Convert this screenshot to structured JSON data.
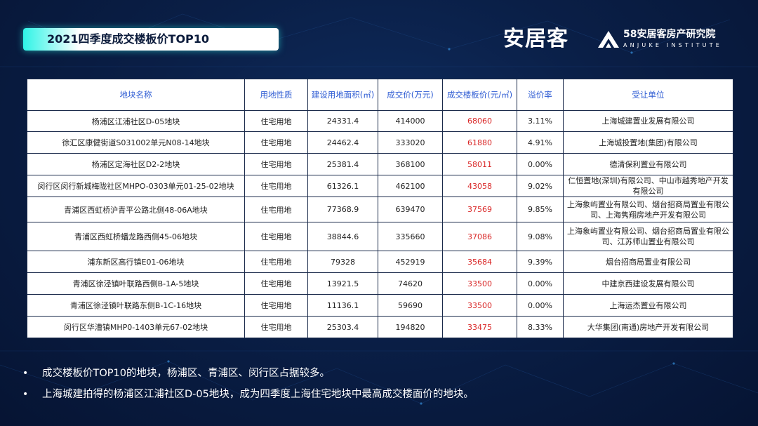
{
  "header": {
    "title": "2021四季度成交楼板价TOP10",
    "logo_anjuke": "安居客",
    "logo_institute_cn": "58安居客房产研究院",
    "logo_institute_en": "ANJUKE INSTITUTE"
  },
  "table": {
    "headers": [
      "地块名称",
      "用地性质",
      "建设用地面积(㎡)",
      "成交价(万元)",
      "成交楼板价(元/㎡)",
      "溢价率",
      "受让单位"
    ],
    "rows": [
      {
        "name": "杨浦区江浦社区D-05地块",
        "use": "住宅用地",
        "area": "24331.4",
        "price": "414000",
        "floor_price": "68060",
        "premium": "3.11%",
        "buyer": "上海城建置业发展有限公司"
      },
      {
        "name": "徐汇区康健街道S031002单元N08-14地块",
        "use": "住宅用地",
        "area": "24462.4",
        "price": "333020",
        "floor_price": "61880",
        "premium": "4.91%",
        "buyer": "上海城投置地(集团)有限公司"
      },
      {
        "name": "杨浦区定海社区D2-2地块",
        "use": "住宅用地",
        "area": "25381.4",
        "price": "368100",
        "floor_price": "58011",
        "premium": "0.00%",
        "buyer": "德清保利置业有限公司"
      },
      {
        "name": "闵行区闵行新城梅陇社区MHPO-0303单元01-25-02地块",
        "use": "住宅用地",
        "area": "61326.1",
        "price": "462100",
        "floor_price": "43058",
        "premium": "9.02%",
        "buyer": "仁恒置地(深圳)有限公司、中山市越秀地产开发有限公司"
      },
      {
        "name": "青浦区西虹桥沪青平公路北侧48-06A地块",
        "use": "住宅用地",
        "area": "77368.9",
        "price": "639470",
        "floor_price": "37569",
        "premium": "9.85%",
        "buyer": "上海象屿置业有限公司、烟台招商局置业有限公司、上海隽翔房地产开发有限公司"
      },
      {
        "name": "青浦区西虹桥蟠龙路西侧45-06地块",
        "use": "住宅用地",
        "area": "38844.6",
        "price": "335660",
        "floor_price": "37086",
        "premium": "9.08%",
        "buyer": "上海象屿置业有限公司、烟台招商局置业有限公司、江苏师山置业有限公司"
      },
      {
        "name": "浦东新区高行镇E01-06地块",
        "use": "住宅用地",
        "area": "79328",
        "price": "452919",
        "floor_price": "35684",
        "premium": "9.39%",
        "buyer": "烟台招商局置业有限公司"
      },
      {
        "name": "青浦区徐泾镇叶联路西侧B-1A-5地块",
        "use": "住宅用地",
        "area": "13921.5",
        "price": "74620",
        "floor_price": "33500",
        "premium": "0.00%",
        "buyer": "中建京西建设发展有限公司"
      },
      {
        "name": "青浦区徐泾镇叶联路东侧B-1C-16地块",
        "use": "住宅用地",
        "area": "11136.1",
        "price": "59690",
        "floor_price": "33500",
        "premium": "0.00%",
        "buyer": "上海运杰置业有限公司"
      },
      {
        "name": "闵行区华漕镇MHP0-1403单元67-02地块",
        "use": "住宅用地",
        "area": "25303.4",
        "price": "194820",
        "floor_price": "33475",
        "premium": "8.33%",
        "buyer": "大华集团(南通)房地产开发有限公司"
      }
    ]
  },
  "bullets": [
    "成交楼板价TOP10的地块，杨浦区、青浦区、闵行区占据较多。",
    "上海城建拍得的杨浦区江浦社区D-05地块，成为四季度上海住宅地块中最高成交楼面价的地块。"
  ],
  "bullet_symbol": "•",
  "colors": {
    "background": "#0a1f47",
    "title_accent": "#2ef3e6",
    "header_text": "#2d5bd3",
    "price_red": "#d92626"
  }
}
